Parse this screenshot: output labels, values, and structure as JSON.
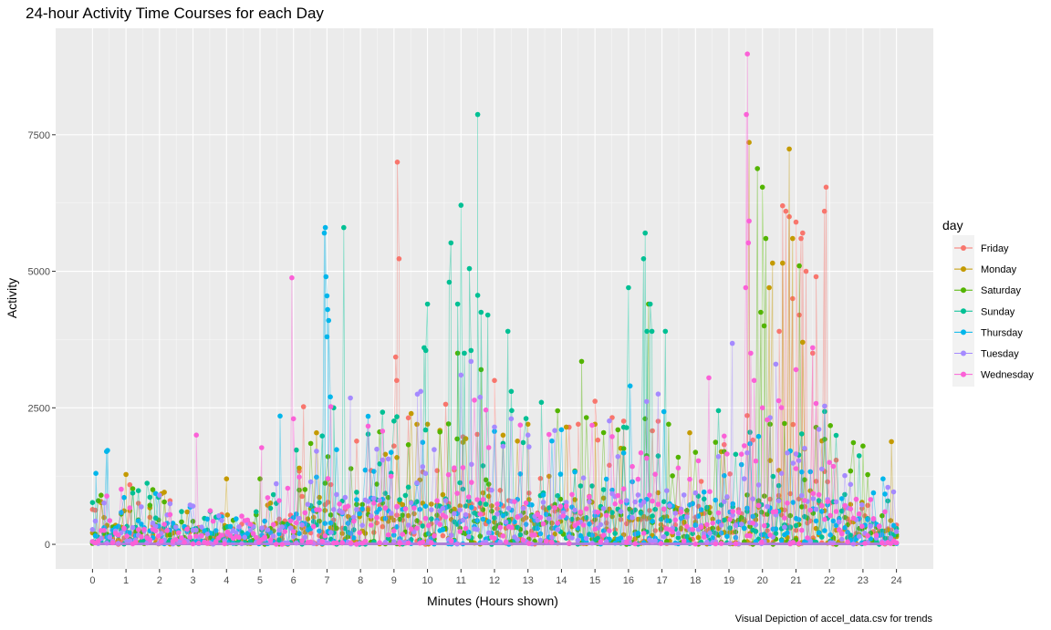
{
  "chart_data": {
    "type": "scatter",
    "title": "24-hour Activity Time Courses for each Day",
    "xlabel": "Minutes (Hours shown)",
    "ylabel": "Activity",
    "caption": "Visual Depiction of accel_data.csv for trends",
    "xlim": [
      -1.1,
      25.1
    ],
    "ylim": [
      -450,
      9450
    ],
    "x_ticks": [
      0,
      1,
      2,
      3,
      4,
      5,
      6,
      7,
      8,
      9,
      10,
      11,
      12,
      13,
      14,
      15,
      16,
      17,
      18,
      19,
      20,
      21,
      22,
      23,
      24
    ],
    "x_tick_labels": [
      "0",
      "1",
      "2",
      "3",
      "4",
      "5",
      "6",
      "7",
      "8",
      "9",
      "10",
      "11",
      "12",
      "13",
      "14",
      "15",
      "16",
      "17",
      "18",
      "19",
      "20",
      "21",
      "22",
      "23",
      "24"
    ],
    "y_ticks": [
      0,
      2500,
      5000,
      7500
    ],
    "y_tick_labels": [
      "0",
      "2500",
      "5000",
      "7500"
    ],
    "grid": true,
    "legend": {
      "title": "day",
      "placement": "right"
    },
    "series": [
      {
        "name": "Friday",
        "color": "#F8766D",
        "highlights": [
          [
            9.1,
            7000
          ],
          [
            9.15,
            5230
          ],
          [
            9.05,
            3430
          ],
          [
            9.08,
            3000
          ],
          [
            20.6,
            6200
          ],
          [
            20.7,
            6100
          ],
          [
            20.8,
            6000
          ],
          [
            21.0,
            5900
          ],
          [
            21.2,
            5700
          ],
          [
            21.15,
            5600
          ],
          [
            21.9,
            6540
          ],
          [
            21.85,
            6100
          ],
          [
            21.6,
            4900
          ],
          [
            21.3,
            5000
          ],
          [
            20.9,
            4500
          ],
          [
            21.5,
            3500
          ],
          [
            20.5,
            3900
          ],
          [
            21.1,
            4200
          ],
          [
            6.3,
            2520
          ],
          [
            12.0,
            3000
          ],
          [
            15.0,
            2620
          ],
          [
            14.5,
            2200
          ]
        ],
        "base": 900,
        "spike": 1700
      },
      {
        "name": "Monday",
        "color": "#C49A00",
        "highlights": [
          [
            19.6,
            7360
          ],
          [
            20.8,
            7240
          ],
          [
            20.9,
            5600
          ],
          [
            20.6,
            5150
          ],
          [
            20.3,
            5150
          ],
          [
            20.2,
            4700
          ],
          [
            21.2,
            3700
          ],
          [
            10.0,
            2200
          ],
          [
            1.0,
            1280
          ],
          [
            4.0,
            1200
          ],
          [
            23.85,
            1880
          ],
          [
            15.0,
            2200
          ],
          [
            13.0,
            2200
          ]
        ],
        "base": 800,
        "spike": 1600
      },
      {
        "name": "Saturday",
        "color": "#53B400",
        "highlights": [
          [
            19.85,
            6880
          ],
          [
            20.0,
            6540
          ],
          [
            20.1,
            5600
          ],
          [
            19.95,
            4250
          ],
          [
            20.05,
            4000
          ],
          [
            21.1,
            5100
          ],
          [
            11.6,
            3200
          ],
          [
            10.9,
            3500
          ],
          [
            14.6,
            3350
          ],
          [
            16.5,
            2300
          ],
          [
            16.6,
            4400
          ],
          [
            17.2,
            2200
          ],
          [
            5.0,
            1200
          ],
          [
            23.0,
            1800
          ]
        ],
        "base": 850,
        "spike": 1700
      },
      {
        "name": "Sunday",
        "color": "#00C094",
        "highlights": [
          [
            11.5,
            7870
          ],
          [
            11.0,
            6210
          ],
          [
            11.25,
            5050
          ],
          [
            10.7,
            5520
          ],
          [
            10.65,
            4800
          ],
          [
            10.9,
            4400
          ],
          [
            11.5,
            4560
          ],
          [
            11.8,
            4200
          ],
          [
            11.6,
            4250
          ],
          [
            12.4,
            3900
          ],
          [
            10.0,
            4400
          ],
          [
            9.9,
            3600
          ],
          [
            9.95,
            3550
          ],
          [
            16.5,
            5700
          ],
          [
            16.45,
            5230
          ],
          [
            16.0,
            4700
          ],
          [
            16.55,
            3900
          ],
          [
            16.65,
            4400
          ],
          [
            16.7,
            3900
          ],
          [
            17.1,
            3900
          ],
          [
            7.5,
            5800
          ],
          [
            7.2,
            2500
          ],
          [
            11.1,
            3500
          ],
          [
            11.3,
            3550
          ],
          [
            12.5,
            2800
          ],
          [
            13.4,
            2600
          ]
        ],
        "base": 900,
        "spike": 1750
      },
      {
        "name": "Thursday",
        "color": "#00B6EB",
        "highlights": [
          [
            6.95,
            5800
          ],
          [
            6.92,
            5700
          ],
          [
            6.97,
            4900
          ],
          [
            7.0,
            4550
          ],
          [
            7.02,
            4300
          ],
          [
            7.05,
            4100
          ],
          [
            7.0,
            3800
          ],
          [
            7.1,
            2700
          ],
          [
            0.45,
            1720
          ],
          [
            0.42,
            1700
          ],
          [
            0.1,
            1300
          ],
          [
            5.6,
            2350
          ],
          [
            16.05,
            2900
          ],
          [
            14.0,
            2100
          ],
          [
            23.6,
            1200
          ]
        ],
        "base": 850,
        "spike": 1650
      },
      {
        "name": "Tuesday",
        "color": "#A58AFF",
        "highlights": [
          [
            19.1,
            3680
          ],
          [
            11.3,
            3350
          ],
          [
            9.8,
            2800
          ],
          [
            9.7,
            2750
          ],
          [
            7.7,
            2680
          ],
          [
            11.0,
            3100
          ],
          [
            12.5,
            2300
          ],
          [
            13.0,
            2000
          ],
          [
            20.4,
            3300
          ],
          [
            2.0,
            900
          ],
          [
            3.0,
            700
          ]
        ],
        "base": 950,
        "spike": 1700
      },
      {
        "name": "Wednesday",
        "color": "#FB61D7",
        "highlights": [
          [
            19.55,
            8980
          ],
          [
            19.52,
            7870
          ],
          [
            19.6,
            5920
          ],
          [
            19.58,
            5520
          ],
          [
            19.5,
            4700
          ],
          [
            19.65,
            3500
          ],
          [
            19.75,
            3000
          ],
          [
            21.5,
            3600
          ],
          [
            21.0,
            3200
          ],
          [
            5.95,
            4880
          ],
          [
            6.0,
            2300
          ],
          [
            3.1,
            2000
          ],
          [
            5.05,
            1770
          ],
          [
            18.4,
            3050
          ],
          [
            20.0,
            2500
          ],
          [
            22.0,
            1500
          ]
        ],
        "base": 900,
        "spike": 1700
      }
    ]
  }
}
